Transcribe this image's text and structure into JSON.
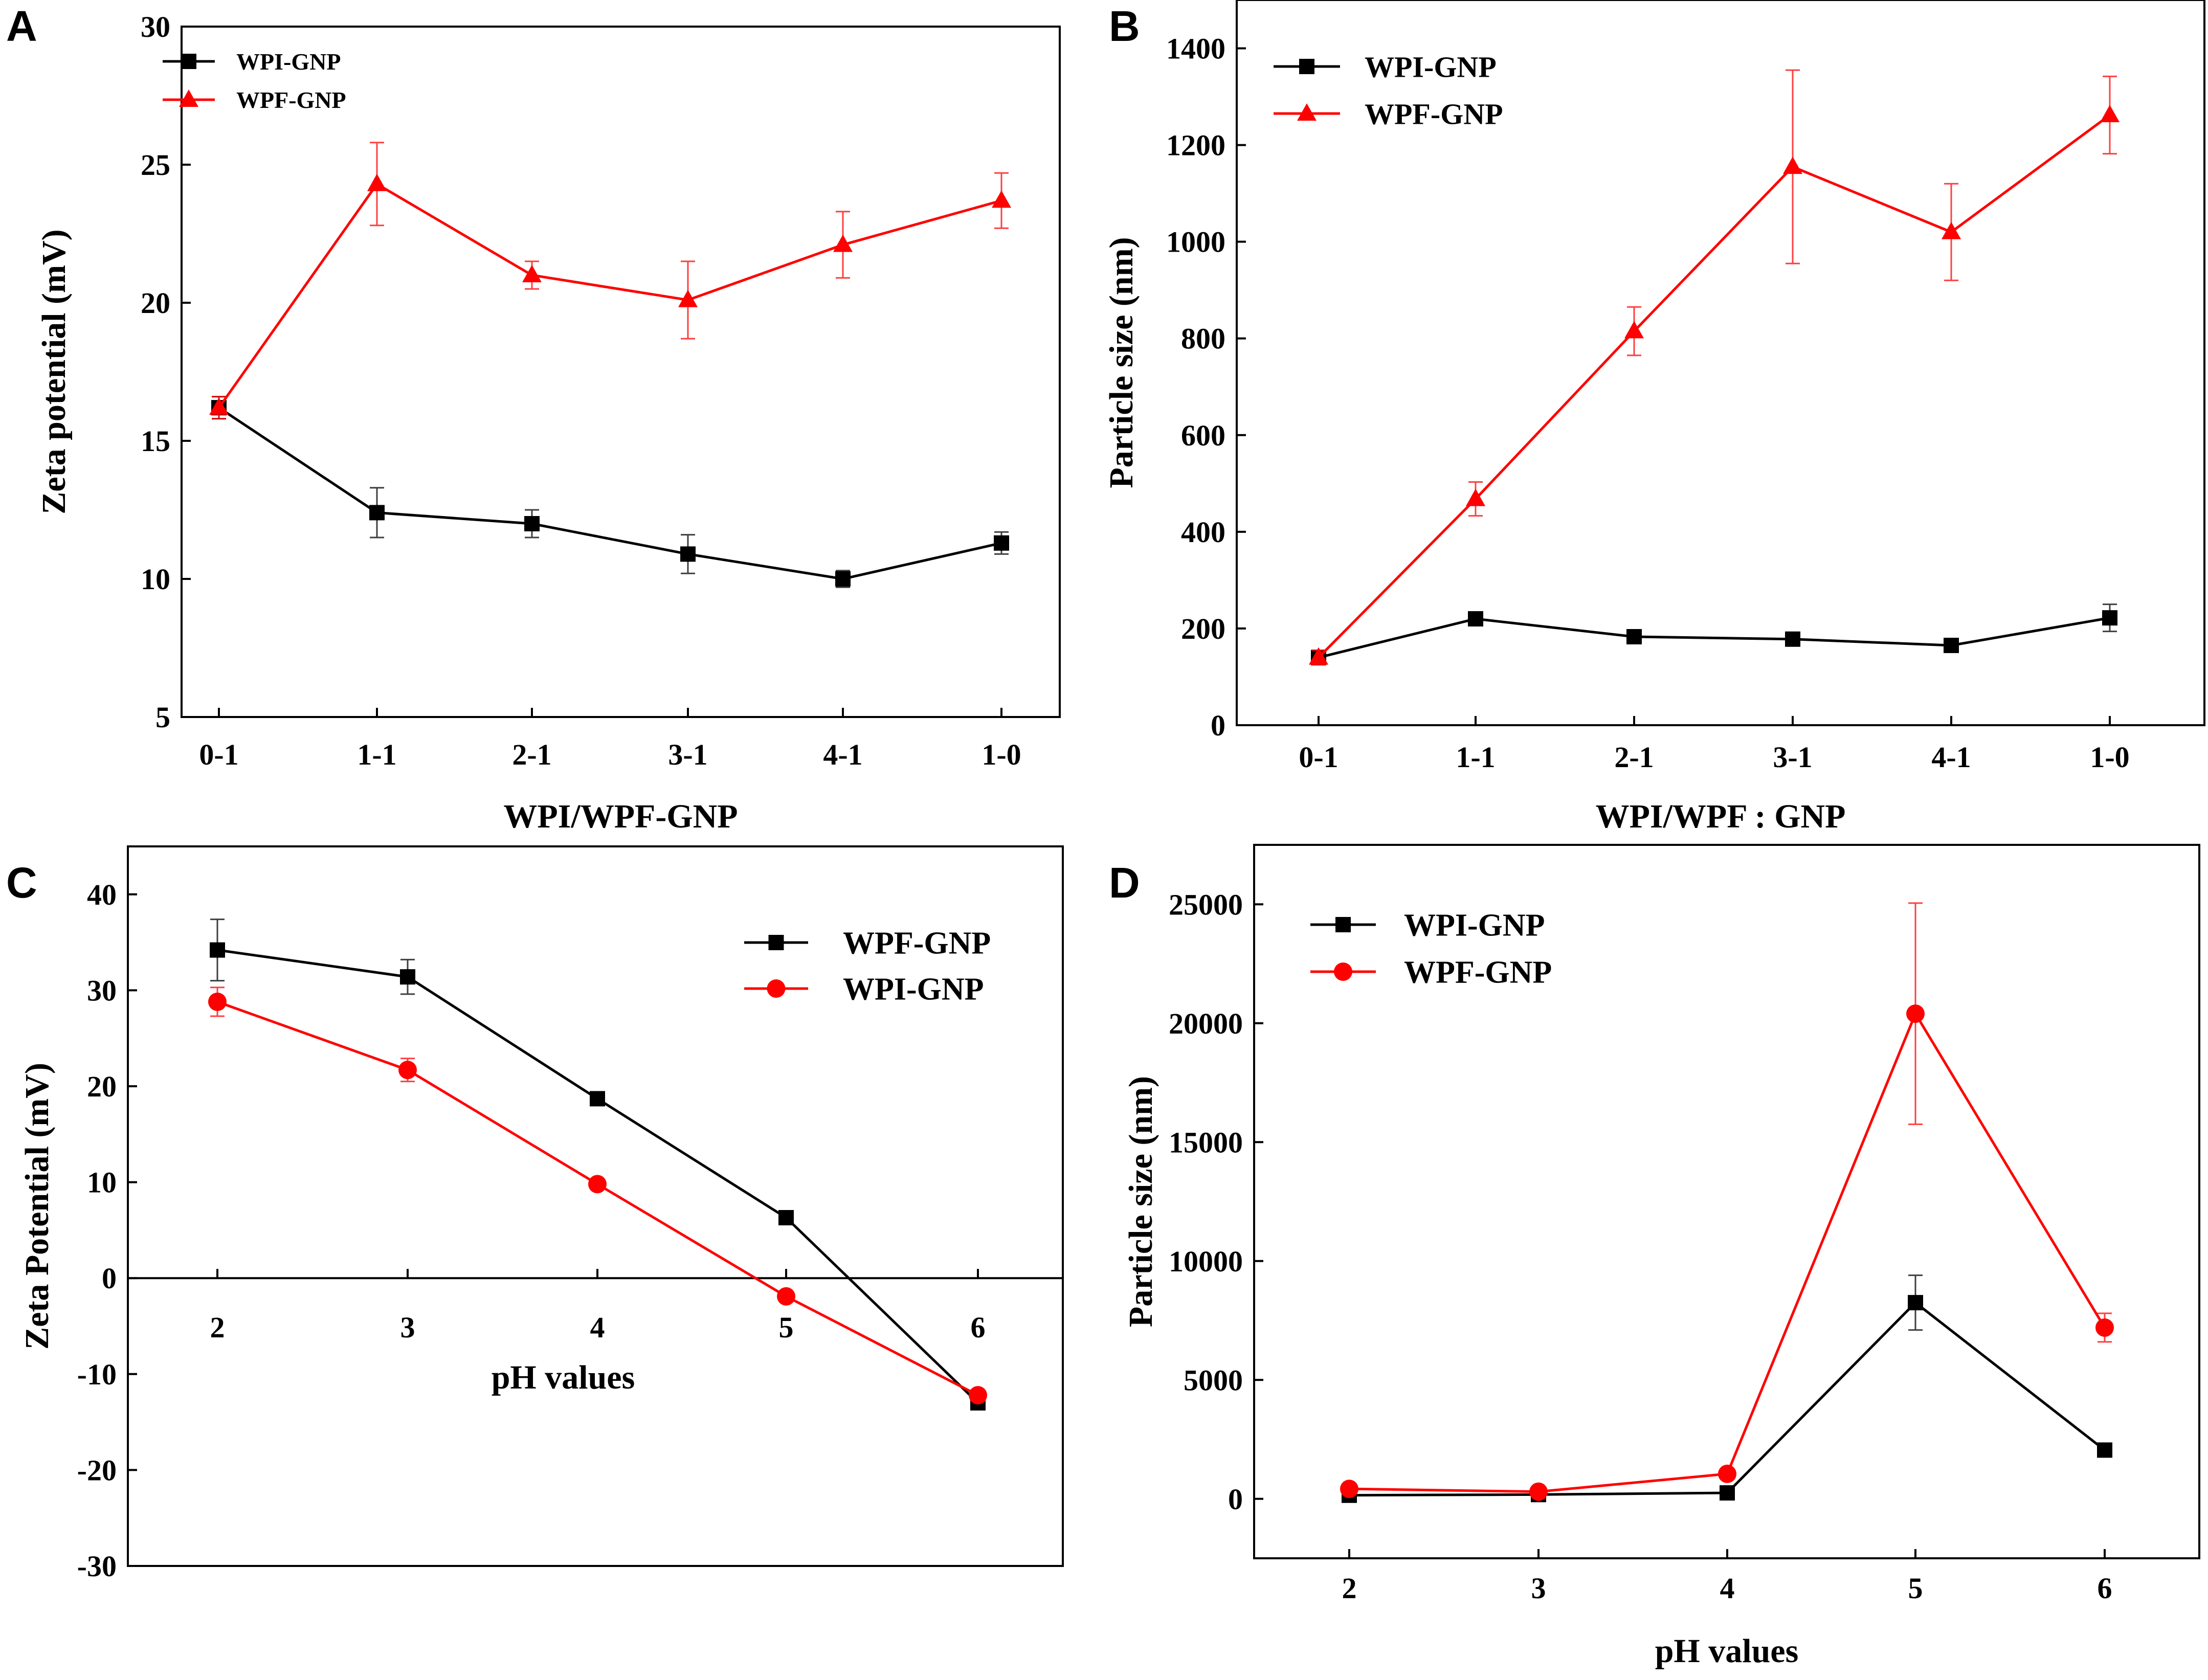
{
  "panels": [
    {
      "letter": "A",
      "chart_data": {
        "type": "line",
        "title": "",
        "xlabel": "WPI/WPF-GNP",
        "ylabel": "Zeta potential (mV)",
        "categories": [
          "0-1",
          "1-1",
          "2-1",
          "3-1",
          "4-1",
          "1-0"
        ],
        "ylim": [
          5,
          30
        ],
        "yticks": [
          5,
          10,
          15,
          20,
          25,
          30
        ],
        "legend_position": "top-left",
        "series": [
          {
            "name": "WPI-GNP",
            "color": "#000000",
            "marker": "square",
            "values": [
              16.2,
              12.4,
              12.0,
              10.9,
              10.0,
              11.3
            ],
            "errors": [
              0.4,
              0.9,
              0.5,
              0.7,
              0.3,
              0.4
            ]
          },
          {
            "name": "WPF-GNP",
            "color": "#ff0000",
            "marker": "triangle",
            "values": [
              16.2,
              24.3,
              21.0,
              20.1,
              22.1,
              23.7
            ],
            "errors": [
              0.4,
              1.5,
              0.5,
              1.4,
              1.2,
              1.0
            ]
          }
        ]
      }
    },
    {
      "letter": "B",
      "chart_data": {
        "type": "line",
        "title": "",
        "xlabel": "WPI/WPF : GNP",
        "ylabel": "Particle size (nm)",
        "categories": [
          "0-1",
          "1-1",
          "2-1",
          "3-1",
          "4-1",
          "1-0"
        ],
        "ylim": [
          0,
          1500
        ],
        "yticks": [
          0,
          200,
          400,
          600,
          800,
          1000,
          1200,
          1400
        ],
        "legend_position": "top-left",
        "series": [
          {
            "name": "WPI-GNP",
            "color": "#000000",
            "marker": "square",
            "values": [
              140,
              220,
              183,
              178,
              165,
              222
            ],
            "errors": [
              10,
              12,
              10,
              10,
              10,
              28
            ]
          },
          {
            "name": "WPF-GNP",
            "color": "#ff0000",
            "marker": "triangle",
            "values": [
              140,
              468,
              815,
              1155,
              1020,
              1262
            ],
            "errors": [
              15,
              35,
              50,
              200,
              100,
              80
            ]
          }
        ]
      }
    },
    {
      "letter": "C",
      "chart_data": {
        "type": "line",
        "title": "",
        "xlabel": "pH values",
        "ylabel": "Zeta Potential (mV)",
        "categories": [
          "2",
          "3",
          "4",
          "5",
          "6"
        ],
        "ylim": [
          -30,
          45
        ],
        "yticks": [
          -30,
          -20,
          -10,
          0,
          10,
          20,
          30,
          40
        ],
        "legend_position": "top-right",
        "series": [
          {
            "name": "WPF-GNP",
            "color": "#000000",
            "marker": "square",
            "values": [
              34.2,
              31.4,
              18.7,
              6.3,
              -13.0
            ],
            "errors": [
              3.2,
              1.8,
              0.5,
              0.5,
              0.5
            ]
          },
          {
            "name": "WPI-GNP",
            "color": "#ff0000",
            "marker": "circle",
            "values": [
              28.8,
              21.7,
              9.8,
              -1.9,
              -12.2
            ],
            "errors": [
              1.5,
              1.2,
              0.5,
              0.5,
              0.5
            ]
          }
        ]
      }
    },
    {
      "letter": "D",
      "chart_data": {
        "type": "line",
        "title": "",
        "xlabel": "pH values",
        "ylabel": "Particle size (nm)",
        "categories": [
          "2",
          "3",
          "4",
          "5",
          "6"
        ],
        "ylim": [
          -2500,
          27500
        ],
        "yticks": [
          0,
          5000,
          10000,
          15000,
          20000,
          25000
        ],
        "legend_position": "top-left",
        "series": [
          {
            "name": "WPI-GNP",
            "color": "#000000",
            "marker": "square",
            "values": [
              150,
              180,
              250,
              8250,
              2050
            ],
            "errors": [
              0,
              0,
              0,
              1150,
              0
            ]
          },
          {
            "name": "WPF-GNP",
            "color": "#ff0000",
            "marker": "circle",
            "values": [
              420,
              300,
              1050,
              20400,
              7200
            ],
            "errors": [
              0,
              0,
              0,
              4650,
              600
            ]
          }
        ]
      }
    }
  ]
}
